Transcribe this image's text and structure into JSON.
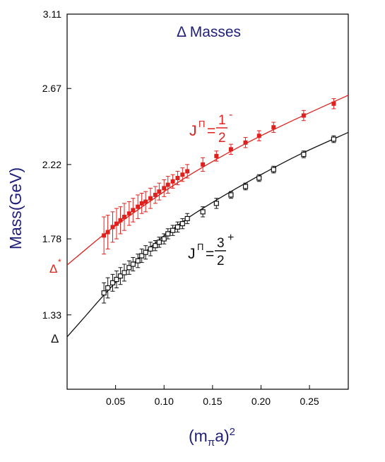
{
  "chart_data": {
    "type": "scatter",
    "title": "Δ  Masses",
    "xlabel_main": "(m",
    "xlabel_sub": "π",
    "xlabel_tail": "a)",
    "xlabel_sup": "2",
    "ylabel": "Mass(GeV)",
    "xlim": [
      0.0,
      0.29
    ],
    "ylim": [
      0.89,
      3.11
    ],
    "x_ticks": [
      0.05,
      0.1,
      0.15,
      0.2,
      0.25
    ],
    "x_tick_labels": [
      "0.05",
      "0.10",
      "0.15",
      "0.20",
      "0.25"
    ],
    "y_ticks": [
      1.33,
      1.78,
      2.22,
      2.67,
      3.11
    ],
    "y_tick_labels": [
      "1.33",
      "1.78",
      "2.22",
      "2.67",
      "3.11"
    ],
    "grid": false,
    "series": [
      {
        "name": "J^Π = 1/2^-",
        "color": "#e0201c",
        "marker": "filled-square",
        "x": [
          0.038,
          0.042,
          0.047,
          0.051,
          0.055,
          0.059,
          0.064,
          0.068,
          0.073,
          0.077,
          0.081,
          0.086,
          0.091,
          0.095,
          0.1,
          0.104,
          0.109,
          0.114,
          0.119,
          0.124,
          0.14,
          0.154,
          0.169,
          0.184,
          0.198,
          0.213,
          0.244,
          0.275
        ],
        "y": [
          1.8,
          1.82,
          1.85,
          1.87,
          1.89,
          1.91,
          1.93,
          1.95,
          1.97,
          1.99,
          2.0,
          2.02,
          2.04,
          2.06,
          2.08,
          2.1,
          2.12,
          2.14,
          2.16,
          2.18,
          2.22,
          2.27,
          2.31,
          2.35,
          2.39,
          2.44,
          2.51,
          2.58
        ],
        "err": [
          0.11,
          0.1,
          0.09,
          0.09,
          0.08,
          0.08,
          0.07,
          0.07,
          0.07,
          0.06,
          0.06,
          0.06,
          0.05,
          0.05,
          0.05,
          0.05,
          0.04,
          0.04,
          0.04,
          0.04,
          0.04,
          0.03,
          0.03,
          0.03,
          0.03,
          0.03,
          0.03,
          0.03
        ],
        "fit": [
          [
            0.0,
            1.625
          ],
          [
            0.04,
            1.815
          ],
          [
            0.08,
            1.98
          ],
          [
            0.12,
            2.135
          ],
          [
            0.16,
            2.27
          ],
          [
            0.2,
            2.39
          ],
          [
            0.24,
            2.5
          ],
          [
            0.29,
            2.63
          ]
        ]
      },
      {
        "name": "J^Π = 3/2^+",
        "color": "#111111",
        "marker": "open-square",
        "x": [
          0.038,
          0.042,
          0.047,
          0.051,
          0.055,
          0.059,
          0.064,
          0.068,
          0.073,
          0.077,
          0.081,
          0.086,
          0.091,
          0.095,
          0.1,
          0.104,
          0.109,
          0.114,
          0.119,
          0.124,
          0.14,
          0.154,
          0.169,
          0.184,
          0.198,
          0.213,
          0.244,
          0.275
        ],
        "y": [
          1.46,
          1.49,
          1.52,
          1.54,
          1.56,
          1.58,
          1.61,
          1.63,
          1.65,
          1.68,
          1.7,
          1.72,
          1.74,
          1.76,
          1.78,
          1.81,
          1.83,
          1.85,
          1.87,
          1.9,
          1.94,
          1.99,
          2.04,
          2.09,
          2.14,
          2.19,
          2.28,
          2.37
        ],
        "err": [
          0.06,
          0.06,
          0.05,
          0.05,
          0.05,
          0.05,
          0.04,
          0.04,
          0.04,
          0.04,
          0.04,
          0.04,
          0.03,
          0.03,
          0.03,
          0.03,
          0.03,
          0.03,
          0.03,
          0.03,
          0.03,
          0.03,
          0.02,
          0.02,
          0.02,
          0.02,
          0.02,
          0.02
        ],
        "fit": [
          [
            0.0,
            1.2
          ],
          [
            0.02,
            1.33
          ],
          [
            0.04,
            1.46
          ],
          [
            0.08,
            1.7
          ],
          [
            0.12,
            1.885
          ],
          [
            0.16,
            2.03
          ],
          [
            0.2,
            2.16
          ],
          [
            0.24,
            2.28
          ],
          [
            0.29,
            2.41
          ]
        ]
      }
    ],
    "annotations": {
      "red_label_j": "J",
      "red_label_pi": "Π",
      "red_label_eq": "=",
      "red_label_num": "1",
      "red_label_den": "2",
      "red_label_sup": "-",
      "black_label_j": "J",
      "black_label_pi": "Π",
      "black_label_eq": "=",
      "black_label_num": "3",
      "black_label_den": "2",
      "black_label_sup": "+",
      "delta_star": "Δ",
      "delta_star_sup": "*",
      "delta": "Δ"
    }
  }
}
